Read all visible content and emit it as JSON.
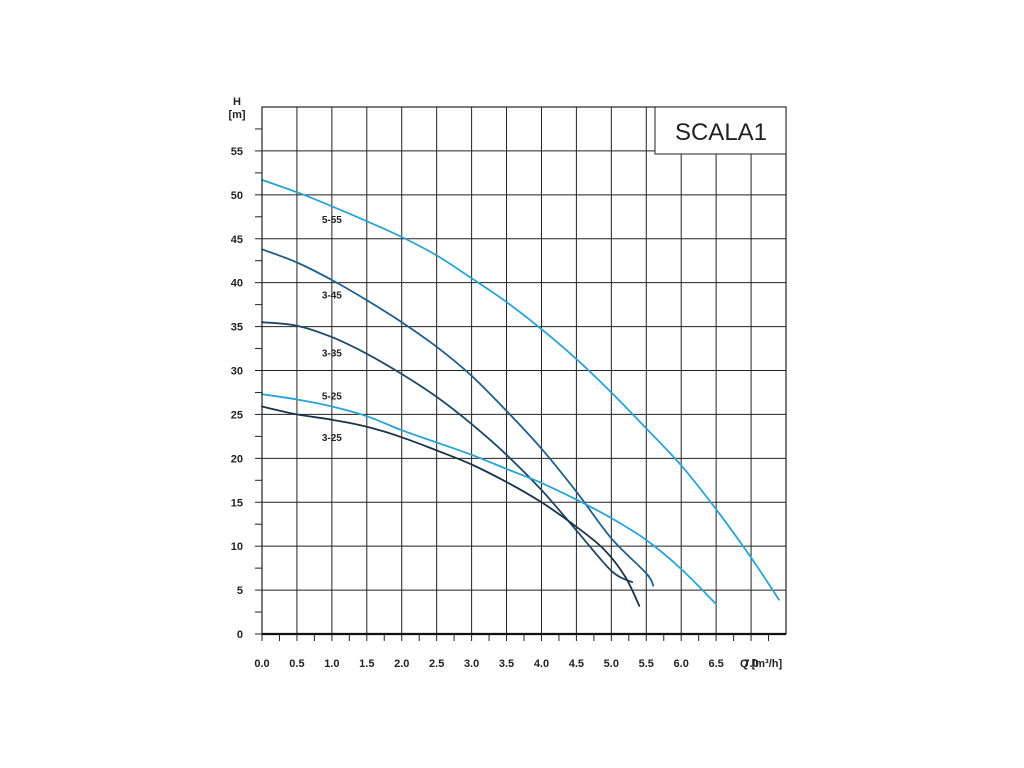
{
  "chart_data": {
    "type": "line",
    "title": "SCALA1",
    "ylabel_line1": "H",
    "ylabel_line2": "[m]",
    "xlabel": "Q [m³/h]",
    "xlim": [
      0,
      7.5
    ],
    "ylim": [
      0,
      60
    ],
    "grid": true,
    "x_ticks": [
      "0.0",
      "0.5",
      "1.0",
      "1.5",
      "2.0",
      "2.5",
      "3.0",
      "3.5",
      "4.0",
      "4.5",
      "5.0",
      "5.5",
      "6.0",
      "6.5",
      "7.0"
    ],
    "y_ticks": [
      "0",
      "5",
      "10",
      "15",
      "20",
      "25",
      "30",
      "35",
      "40",
      "45",
      "50",
      "55"
    ],
    "series": [
      {
        "name": "5-55",
        "color": "#29a3d6",
        "label_at": [
          1.0,
          46.8
        ],
        "x": [
          0.0,
          0.5,
          1.0,
          1.5,
          2.0,
          2.5,
          3.0,
          3.5,
          4.0,
          4.5,
          5.0,
          5.5,
          6.0,
          6.5,
          7.0,
          7.4
        ],
        "y": [
          51.7,
          50.3,
          48.7,
          47.0,
          45.2,
          43.1,
          40.5,
          37.8,
          34.7,
          31.3,
          27.5,
          23.4,
          19.2,
          14.2,
          8.7,
          3.9
        ]
      },
      {
        "name": "3-45",
        "color": "#1f5f8b",
        "label_at": [
          1.0,
          38.2
        ],
        "x": [
          0.0,
          0.5,
          1.0,
          1.5,
          2.0,
          2.5,
          3.0,
          3.5,
          4.0,
          4.5,
          5.0,
          5.5,
          5.6
        ],
        "y": [
          43.8,
          42.3,
          40.3,
          38.0,
          35.5,
          32.7,
          29.4,
          25.4,
          21.1,
          16.2,
          10.9,
          6.9,
          5.5
        ]
      },
      {
        "name": "3-35",
        "color": "#1e4866",
        "label_at": [
          1.0,
          31.6
        ],
        "x": [
          0.0,
          0.5,
          1.0,
          1.5,
          2.0,
          2.5,
          3.0,
          3.5,
          4.0,
          4.5,
          5.0,
          5.3
        ],
        "y": [
          35.5,
          35.1,
          33.8,
          31.9,
          29.6,
          27.0,
          23.9,
          20.4,
          16.4,
          11.8,
          7.2,
          5.9
        ]
      },
      {
        "name": "5-25",
        "color": "#29a3d6",
        "label_at": [
          1.0,
          26.7
        ],
        "x": [
          0.0,
          0.5,
          1.0,
          1.5,
          2.0,
          2.5,
          3.0,
          3.5,
          4.0,
          4.5,
          5.0,
          5.5,
          6.0,
          6.5
        ],
        "y": [
          27.3,
          26.7,
          25.9,
          24.8,
          23.2,
          21.8,
          20.4,
          18.8,
          17.2,
          15.3,
          13.2,
          10.7,
          7.4,
          3.4
        ]
      },
      {
        "name": "3-25",
        "color": "#1b3448",
        "label_at": [
          1.0,
          22.0
        ],
        "x": [
          0.0,
          0.5,
          1.0,
          1.5,
          2.0,
          2.5,
          3.0,
          3.5,
          4.0,
          4.5,
          4.9,
          5.2,
          5.4
        ],
        "y": [
          25.9,
          25.0,
          24.4,
          23.6,
          22.4,
          20.9,
          19.3,
          17.3,
          15.0,
          12.2,
          9.6,
          6.5,
          3.2
        ]
      }
    ]
  }
}
